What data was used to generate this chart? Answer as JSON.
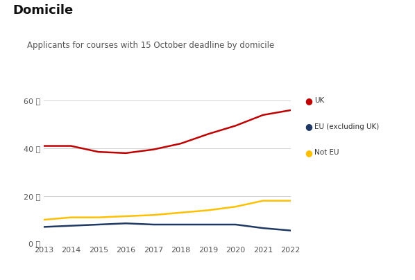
{
  "title": "Domicile",
  "subtitle": "Applicants for courses with 15 October deadline by domicile",
  "years": [
    2013,
    2014,
    2015,
    2016,
    2017,
    2018,
    2019,
    2020,
    2021,
    2022
  ],
  "uk": [
    41000,
    41000,
    38500,
    38000,
    39500,
    42000,
    46000,
    49500,
    54000,
    56000
  ],
  "eu": [
    7000,
    7500,
    8000,
    8500,
    8000,
    8000,
    8000,
    8000,
    6500,
    5500
  ],
  "not_eu": [
    10000,
    11000,
    11000,
    11500,
    12000,
    13000,
    14000,
    15500,
    18000,
    18000
  ],
  "uk_color": "#c00000",
  "eu_color": "#1f3864",
  "not_eu_color": "#ffc000",
  "ylim": [
    0,
    67000
  ],
  "yticks": [
    0,
    20000,
    40000,
    60000
  ],
  "ytick_labels": [
    "0 千",
    "20 千",
    "40 千",
    "60 千"
  ],
  "background_color": "#ffffff",
  "grid_color": "#d0d0d0",
  "legend_labels": [
    "UK",
    "EU (excluding UK)",
    "Not EU"
  ],
  "title_fontsize": 13,
  "subtitle_fontsize": 8.5,
  "tick_fontsize": 8
}
